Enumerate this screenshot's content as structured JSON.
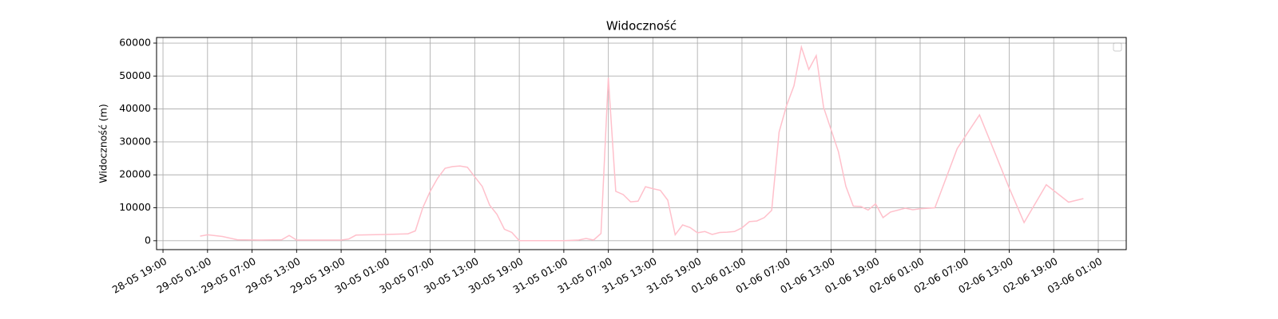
{
  "chart_data": {
    "type": "line",
    "title": "Widoczność",
    "ylabel": "Widoczność (m)",
    "x": [
      "29-05 00:00",
      "29-05 01:00",
      "29-05 03:00",
      "29-05 05:00",
      "29-05 08:00",
      "29-05 11:00",
      "29-05 12:00",
      "29-05 13:00",
      "29-05 19:00",
      "29-05 20:00",
      "29-05 21:00",
      "29-05 23:00",
      "30-05 01:00",
      "30-05 04:00",
      "30-05 05:00",
      "30-05 06:00",
      "30-05 07:00",
      "30-05 08:00",
      "30-05 09:00",
      "30-05 10:00",
      "30-05 11:00",
      "30-05 12:00",
      "30-05 14:00",
      "30-05 15:00",
      "30-05 16:00",
      "30-05 17:00",
      "30-05 18:00",
      "30-05 19:00",
      "31-05 01:00",
      "31-05 03:00",
      "31-05 04:00",
      "31-05 05:00",
      "31-05 06:00",
      "31-05 07:00",
      "31-05 08:00",
      "31-05 09:00",
      "31-05 10:00",
      "31-05 11:00",
      "31-05 12:00",
      "31-05 13:00",
      "31-05 14:00",
      "31-05 15:00",
      "31-05 16:00",
      "31-05 17:00",
      "31-05 18:00",
      "31-05 19:00",
      "31-05 20:00",
      "31-05 21:00",
      "31-05 22:00",
      "31-05 23:00",
      "01-06 00:00",
      "01-06 01:00",
      "01-06 02:00",
      "01-06 03:00",
      "01-06 04:00",
      "01-06 05:00",
      "01-06 06:00",
      "01-06 07:00",
      "01-06 08:00",
      "01-06 09:00",
      "01-06 10:00",
      "01-06 11:00",
      "01-06 12:00",
      "01-06 14:00",
      "01-06 15:00",
      "01-06 16:00",
      "01-06 17:00",
      "01-06 18:00",
      "01-06 19:00",
      "01-06 20:00",
      "01-06 21:00",
      "01-06 23:00",
      "02-06 00:00",
      "02-06 01:00",
      "02-06 03:00",
      "02-06 06:00",
      "02-06 09:00",
      "02-06 13:00",
      "02-06 15:00",
      "02-06 18:00",
      "02-06 21:00",
      "02-06 23:00"
    ],
    "series": [
      {
        "color": "#ffc0cb",
        "values": [
          1400,
          1800,
          1300,
          300,
          200,
          300,
          1600,
          200,
          200,
          500,
          1700,
          1800,
          1900,
          2100,
          3000,
          10000,
          15000,
          19000,
          22000,
          22500,
          22700,
          22300,
          16500,
          10800,
          8000,
          3500,
          2500,
          0,
          0,
          200,
          700,
          200,
          2200,
          49500,
          15000,
          14000,
          11800,
          12000,
          16400,
          15800,
          15300,
          12300,
          1800,
          4800,
          4000,
          2400,
          2800,
          1900,
          2500,
          2600,
          2800,
          3900,
          5800,
          6000,
          7000,
          9200,
          33000,
          41000,
          47000,
          58800,
          52000,
          56200,
          40500,
          27000,
          16500,
          10500,
          10400,
          9300,
          11200,
          7000,
          8700,
          9900,
          9400,
          9700,
          10000,
          28000,
          38200,
          16000,
          5500,
          17000,
          11700,
          12800
        ]
      }
    ],
    "xlim": [
      "28-05 18:08",
      "03-06 04:46"
    ],
    "xticks": [
      "28-05 19:00",
      "29-05 01:00",
      "29-05 07:00",
      "29-05 13:00",
      "29-05 19:00",
      "30-05 01:00",
      "30-05 07:00",
      "30-05 13:00",
      "30-05 19:00",
      "31-05 01:00",
      "31-05 07:00",
      "31-05 13:00",
      "31-05 19:00",
      "01-06 01:00",
      "01-06 07:00",
      "01-06 13:00",
      "01-06 19:00",
      "02-06 01:00",
      "02-06 07:00",
      "02-06 13:00",
      "02-06 19:00",
      "03-06 01:00"
    ],
    "ylim": [
      -2700,
      61700
    ],
    "yticks": [
      0,
      10000,
      20000,
      30000,
      40000,
      50000,
      60000
    ],
    "grid": true
  }
}
